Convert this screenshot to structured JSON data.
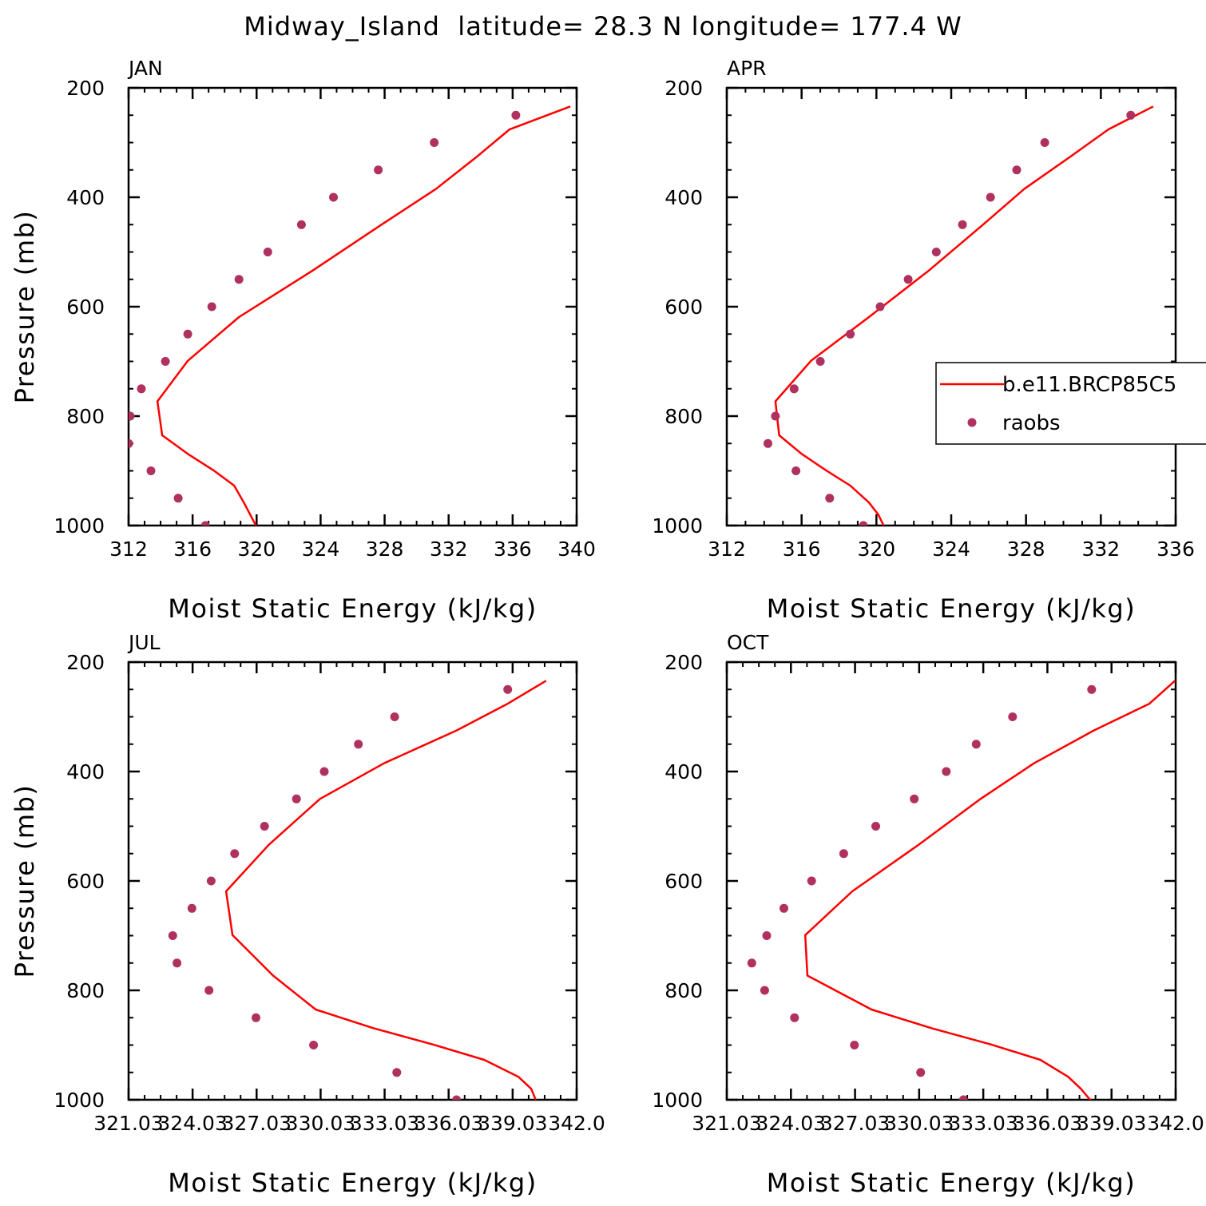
{
  "figure_title": "Midway_Island  latitude= 28.3 N longitude= 177.4 W",
  "colors": {
    "model": "#ff0000",
    "obs": "#b0305f",
    "axis": "#000000"
  },
  "legend": {
    "model_label": "b.e11.BRCP85C5",
    "obs_label": "raobs"
  },
  "chart_data": [
    {
      "type": "line",
      "panel": "JAN",
      "xlabel": "Moist Static Energy (kJ/kg)",
      "ylabel": "Pressure (mb)",
      "xlim": [
        312,
        340
      ],
      "ylim": [
        200,
        1000
      ],
      "yreversed": true,
      "xticks": [
        312,
        316,
        320,
        324,
        328,
        332,
        336,
        340
      ],
      "xtick_labels": [
        "312",
        "316",
        "320",
        "324",
        "328",
        "332",
        "336",
        "340"
      ],
      "yticks": [
        200,
        400,
        600,
        800,
        1000
      ],
      "ytick_labels": [
        "200",
        "400",
        "600",
        "800",
        "1000"
      ],
      "series": [
        {
          "name": "b.e11.BRCP85C5",
          "kind": "line",
          "x": [
            339.6,
            335.8,
            333.8,
            331.2,
            327.8,
            323.5,
            318.9,
            315.7,
            313.8,
            314.1,
            315.7,
            317.3,
            318.6,
            319.2,
            320.1
          ],
          "y": [
            234,
            276,
            325,
            385,
            450,
            534,
            619,
            699,
            773,
            835,
            869,
            899,
            927,
            958,
            1008
          ]
        },
        {
          "name": "raobs",
          "kind": "scatter",
          "x": [
            336.2,
            331.1,
            327.6,
            324.8,
            322.8,
            320.7,
            318.9,
            317.2,
            315.7,
            314.3,
            312.8,
            312.1,
            312.0,
            313.4,
            315.1,
            316.8
          ],
          "y": [
            250,
            300,
            350,
            400,
            450,
            500,
            550,
            600,
            650,
            700,
            750,
            800,
            850,
            900,
            950,
            1000
          ]
        }
      ]
    },
    {
      "type": "line",
      "panel": "APR",
      "xlabel": "Moist Static Energy (kJ/kg)",
      "ylabel": "",
      "xlim": [
        312,
        336
      ],
      "ylim": [
        200,
        1000
      ],
      "yreversed": true,
      "xticks": [
        312,
        316,
        320,
        324,
        328,
        332,
        336
      ],
      "xtick_labels": [
        "312",
        "316",
        "320",
        "324",
        "328",
        "332",
        "336"
      ],
      "yticks": [
        200,
        400,
        600,
        800,
        1000
      ],
      "ytick_labels": [
        "200",
        "400",
        "600",
        "800",
        "1000"
      ],
      "series": [
        {
          "name": "b.e11.BRCP85C5",
          "kind": "line",
          "x": [
            334.8,
            332.4,
            330.4,
            327.9,
            325.7,
            322.8,
            319.6,
            316.5,
            314.6,
            314.8,
            316.0,
            317.3,
            318.6,
            319.6,
            320.1,
            320.5
          ],
          "y": [
            234,
            276,
            325,
            385,
            450,
            534,
            619,
            699,
            773,
            835,
            869,
            899,
            927,
            958,
            980,
            1008
          ]
        },
        {
          "name": "raobs",
          "kind": "scatter",
          "x": [
            333.6,
            329.0,
            327.5,
            326.1,
            324.6,
            323.2,
            321.7,
            320.2,
            318.6,
            317.0,
            315.6,
            314.6,
            314.2,
            315.7,
            317.5,
            319.3
          ],
          "y": [
            250,
            300,
            350,
            400,
            450,
            500,
            550,
            600,
            650,
            700,
            750,
            800,
            850,
            900,
            950,
            1000
          ]
        }
      ]
    },
    {
      "type": "line",
      "panel": "JUL",
      "xlabel": "Moist Static Energy (kJ/kg)",
      "ylabel": "Pressure (mb)",
      "xlim": [
        321.03,
        342.03
      ],
      "ylim": [
        200,
        1000
      ],
      "yreversed": true,
      "xticks": [
        321.03,
        324.03,
        327.03,
        330.03,
        333.03,
        336.03,
        339.03,
        342.03
      ],
      "xtick_labels": [
        "321.03",
        "324.03",
        "327.03",
        "330.03",
        "333.03",
        "336.03",
        "339.03",
        "342.0"
      ],
      "yticks": [
        200,
        400,
        600,
        800,
        1000
      ],
      "ytick_labels": [
        "200",
        "400",
        "600",
        "800",
        "1000"
      ],
      "series": [
        {
          "name": "b.e11.BRCP85C5",
          "kind": "line",
          "x": [
            340.6,
            338.8,
            336.4,
            333.0,
            330.0,
            327.6,
            325.6,
            325.9,
            327.8,
            329.8,
            332.5,
            335.3,
            337.7,
            339.3,
            339.9,
            340.2
          ],
          "y": [
            234,
            276,
            325,
            385,
            450,
            534,
            619,
            699,
            773,
            835,
            869,
            899,
            927,
            958,
            980,
            1008
          ]
        },
        {
          "name": "raobs",
          "kind": "scatter",
          "x": [
            338.8,
            333.5,
            331.8,
            330.2,
            328.9,
            327.4,
            326.0,
            324.9,
            324.0,
            323.1,
            323.3,
            324.8,
            327.0,
            329.7,
            333.6,
            336.4
          ],
          "y": [
            250,
            300,
            350,
            400,
            450,
            500,
            550,
            600,
            650,
            700,
            750,
            800,
            850,
            900,
            950,
            1000
          ]
        }
      ]
    },
    {
      "type": "line",
      "panel": "OCT",
      "xlabel": "Moist Static Energy (kJ/kg)",
      "ylabel": "",
      "xlim": [
        321.03,
        342.03
      ],
      "ylim": [
        200,
        1000
      ],
      "yreversed": true,
      "xticks": [
        321.03,
        324.03,
        327.03,
        330.03,
        333.03,
        336.03,
        339.03,
        342.03
      ],
      "xtick_labels": [
        "321.03",
        "324.03",
        "327.03",
        "330.03",
        "333.03",
        "336.03",
        "339.03",
        "342.0"
      ],
      "yticks": [
        200,
        400,
        600,
        800,
        1000
      ],
      "ytick_labels": [
        "200",
        "400",
        "600",
        "800",
        "1000"
      ],
      "series": [
        {
          "name": "b.e11.BRCP85C5",
          "kind": "line",
          "x": [
            342.0,
            340.8,
            338.2,
            335.4,
            332.9,
            330.0,
            326.9,
            324.7,
            324.8,
            327.8,
            330.6,
            333.4,
            335.7,
            337.0,
            337.6,
            338.2
          ],
          "y": [
            234,
            276,
            325,
            385,
            450,
            534,
            619,
            699,
            773,
            835,
            869,
            899,
            927,
            958,
            980,
            1008
          ]
        },
        {
          "name": "raobs",
          "kind": "scatter",
          "x": [
            338.1,
            334.4,
            332.7,
            331.3,
            329.8,
            328.0,
            326.5,
            325.0,
            323.7,
            322.9,
            322.2,
            322.8,
            324.2,
            327.0,
            330.1,
            332.1
          ],
          "y": [
            250,
            300,
            350,
            400,
            450,
            500,
            550,
            600,
            650,
            700,
            750,
            800,
            850,
            900,
            950,
            1000
          ]
        }
      ]
    }
  ]
}
